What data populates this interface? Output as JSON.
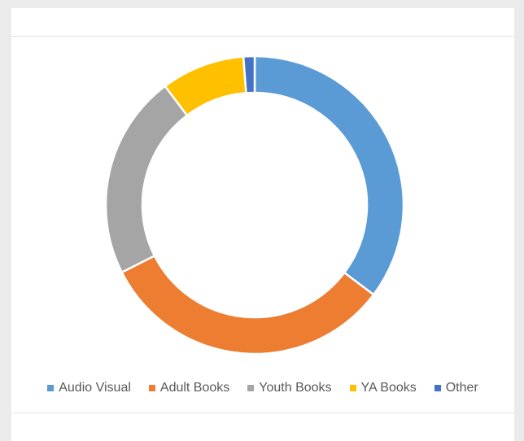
{
  "chart_data": {
    "type": "pie",
    "style": "donut",
    "title": "",
    "categories": [
      "Audio Visual",
      "Adult Books",
      "Youth Books",
      "YA Books",
      "Other"
    ],
    "values": [
      35,
      32,
      22,
      9,
      1.2
    ],
    "colors": [
      "#5b9bd5",
      "#ed7d31",
      "#a5a5a5",
      "#ffc000",
      "#4472c4"
    ],
    "legend_position": "bottom",
    "start_angle_deg": 0,
    "direction": "clockwise"
  }
}
